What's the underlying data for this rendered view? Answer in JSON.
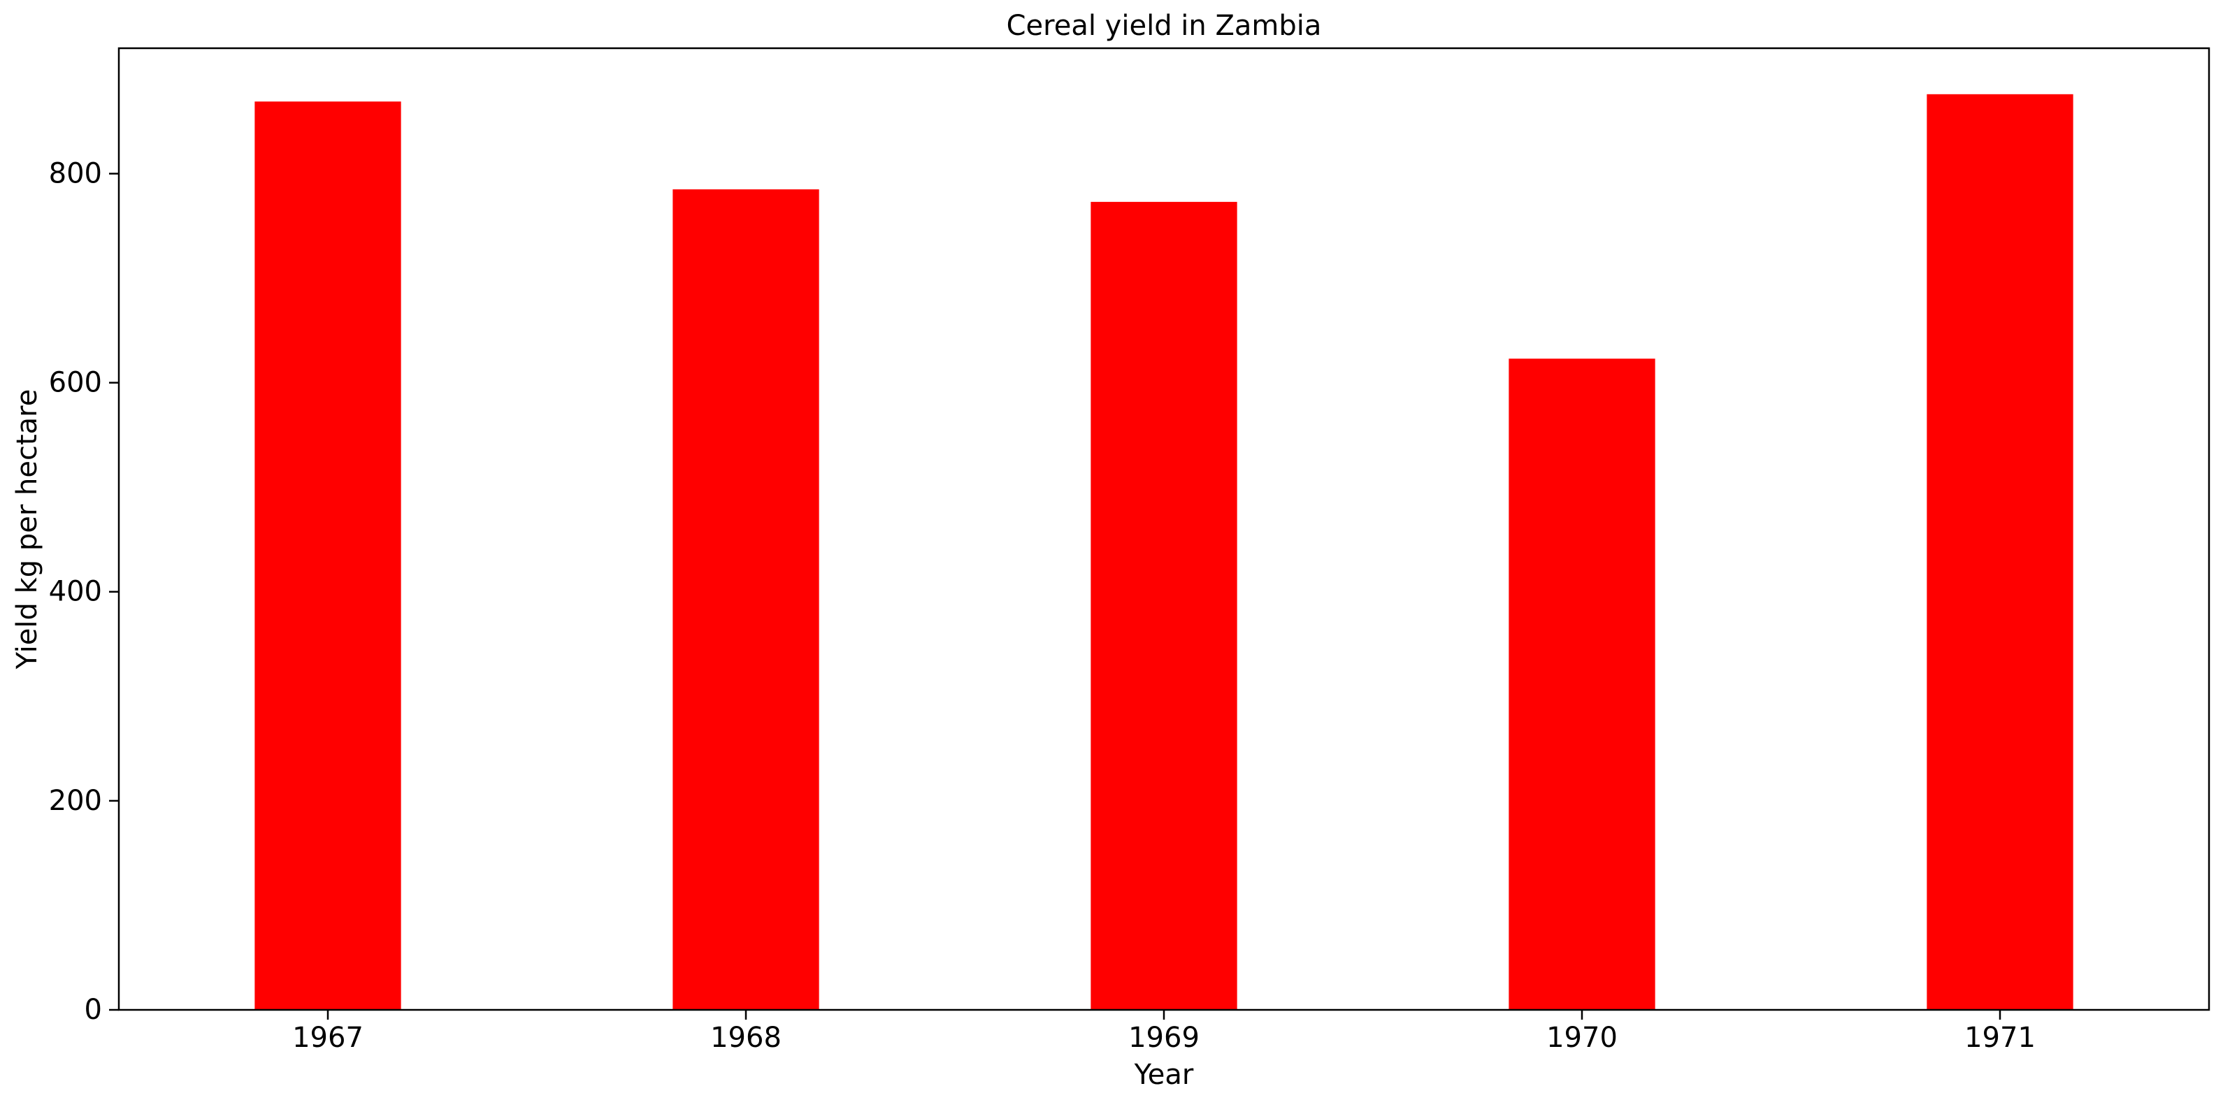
{
  "chart_data": {
    "type": "bar",
    "title": "Cereal yield in Zambia",
    "xlabel": "Year",
    "ylabel": "Yield kg per hectare",
    "categories": [
      "1967",
      "1968",
      "1969",
      "1970",
      "1971"
    ],
    "values": [
      869,
      785,
      773,
      623,
      876
    ],
    "ylim": [
      0,
      920
    ],
    "yticks": [
      0,
      200,
      400,
      600,
      800
    ],
    "grid": false,
    "legend": "none",
    "bar_color": "#ff0000"
  }
}
